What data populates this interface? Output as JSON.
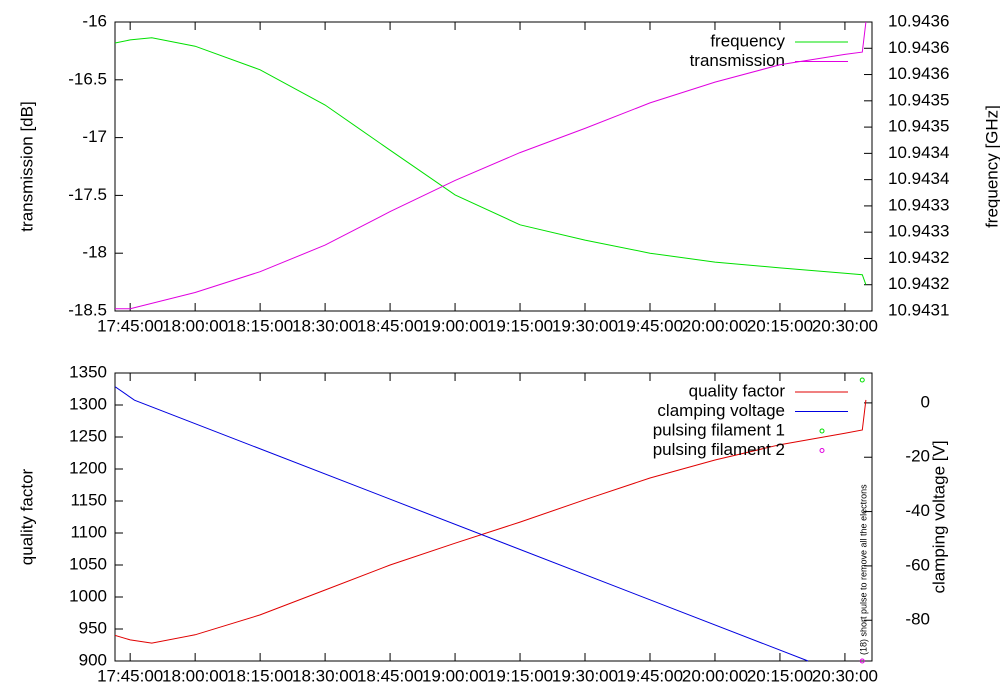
{
  "chart_data": [
    {
      "type": "line",
      "y_label": "transmission [dB]",
      "y2_label": "frequency [GHz]",
      "xlim": [
        "17:41:30",
        "20:36:15"
      ],
      "xticks": [
        "17:45:00",
        "18:00:00",
        "18:15:00",
        "18:30:00",
        "18:45:00",
        "19:00:00",
        "19:15:00",
        "19:30:00",
        "19:45:00",
        "20:00:00",
        "20:15:00",
        "20:30:00"
      ],
      "ylim": [
        -18.5,
        -16
      ],
      "yticks": [
        -18.5,
        -18,
        -17.5,
        -17,
        -16.5,
        -16
      ],
      "y2lim": [
        10.9431,
        10.94365
      ],
      "y2ticks": [
        {
          "value": 10.9431,
          "label": "10.9431"
        },
        {
          "value": 10.94315,
          "label": "10.9432"
        },
        {
          "value": 10.9432,
          "label": "10.9432"
        },
        {
          "value": 10.94325,
          "label": "10.9433"
        },
        {
          "value": 10.9433,
          "label": "10.9433"
        },
        {
          "value": 10.94335,
          "label": "10.9434"
        },
        {
          "value": 10.9434,
          "label": "10.9434"
        },
        {
          "value": 10.94345,
          "label": "10.9435"
        },
        {
          "value": 10.9435,
          "label": "10.9435"
        },
        {
          "value": 10.94355,
          "label": "10.9436"
        },
        {
          "value": 10.9436,
          "label": "10.9436"
        },
        {
          "value": 10.94365,
          "label": "10.9436"
        }
      ],
      "series": [
        {
          "name": "frequency",
          "color": "#00e000",
          "axis": "y2",
          "x": [
            "17:41:30",
            "17:45:00",
            "17:50:00",
            "18:00:00",
            "18:15:00",
            "18:30:00",
            "18:45:00",
            "19:00:00",
            "19:15:00",
            "19:30:00",
            "19:45:00",
            "20:00:00",
            "20:15:00",
            "20:30:00",
            "20:34:00",
            "20:34:50"
          ],
          "values": [
            10.94361,
            10.943616,
            10.94362,
            10.943604,
            10.943559,
            10.943492,
            10.943406,
            10.943321,
            10.943264,
            10.943235,
            10.94321,
            10.943193,
            10.943182,
            10.943172,
            10.943169,
            10.94315
          ]
        },
        {
          "name": "transmission",
          "color": "#e000e0",
          "x": [
            "17:41:30",
            "17:45:00",
            "18:00:00",
            "18:15:00",
            "18:30:00",
            "18:45:00",
            "19:00:00",
            "19:15:00",
            "19:30:00",
            "19:45:00",
            "20:00:00",
            "20:15:00",
            "20:30:00",
            "20:34:00",
            "20:34:50"
          ],
          "values": [
            -18.48,
            -18.48,
            -18.34,
            -18.16,
            -17.93,
            -17.64,
            -17.37,
            -17.13,
            -16.92,
            -16.7,
            -16.52,
            -16.37,
            -16.28,
            -16.26,
            -16.0
          ]
        }
      ]
    },
    {
      "type": "line",
      "y_label": "quality factor",
      "y2_label": "clamping voltage [V]",
      "annotation": "(18) short pulse to remove all the electrons",
      "xlim": [
        "17:41:30",
        "20:36:15"
      ],
      "xticks": [
        "17:45:00",
        "18:00:00",
        "18:15:00",
        "18:30:00",
        "18:45:00",
        "19:00:00",
        "19:15:00",
        "19:30:00",
        "19:45:00",
        "20:00:00",
        "20:15:00",
        "20:30:00"
      ],
      "ylim": [
        900,
        1350
      ],
      "yticks": [
        900,
        950,
        1000,
        1050,
        1100,
        1150,
        1200,
        1250,
        1300,
        1350
      ],
      "y2lim": [
        -95,
        11
      ],
      "y2ticks": [
        -80,
        -60,
        -40,
        -20,
        0
      ],
      "series": [
        {
          "name": "quality factor",
          "color": "#e00000",
          "x": [
            "17:41:30",
            "17:45:00",
            "17:50:00",
            "18:00:00",
            "18:15:00",
            "18:30:00",
            "18:45:00",
            "19:00:00",
            "19:15:00",
            "19:30:00",
            "19:45:00",
            "20:00:00",
            "20:15:00",
            "20:30:00",
            "20:34:00",
            "20:34:50"
          ],
          "values": [
            940,
            933,
            928,
            941,
            972,
            1011,
            1050,
            1084,
            1117,
            1152,
            1186,
            1214,
            1238,
            1256,
            1261,
            1308
          ]
        },
        {
          "name": "clamping voltage",
          "color": "#0000e0",
          "axis": "y2",
          "x": [
            "17:41:30",
            "17:46:00",
            "20:21:30"
          ],
          "values": [
            6,
            1,
            -95
          ]
        },
        {
          "name": "pulsing filament 1",
          "color": "#00e000",
          "marker": "circle",
          "x": [
            "20:34:00"
          ],
          "values": [
            1339
          ]
        },
        {
          "name": "pulsing filament 2",
          "color": "#e000e0",
          "marker": "circle",
          "x": [
            "20:34:00"
          ],
          "values": [
            900
          ]
        }
      ]
    }
  ]
}
